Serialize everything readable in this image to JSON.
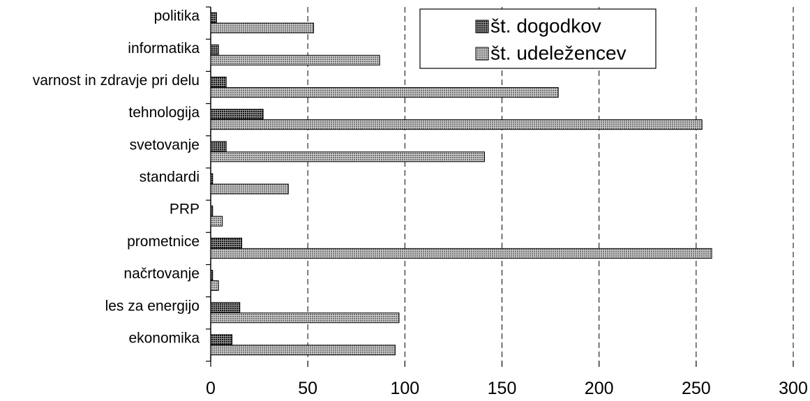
{
  "chart_data": {
    "type": "bar",
    "orientation": "horizontal",
    "categories": [
      "politika",
      "informatika",
      "varnost in zdravje pri delu",
      "tehnologija",
      "svetovanje",
      "standardi",
      "PRP",
      "prometnice",
      "načrtovanje",
      "les za energijo",
      "ekonomika"
    ],
    "series": [
      {
        "name": "št. dogodkov",
        "values": [
          3,
          4,
          8,
          27,
          8,
          1,
          1,
          16,
          1,
          15,
          11
        ],
        "pattern": "dark-dotted"
      },
      {
        "name": "št. udeležencev",
        "values": [
          53,
          87,
          179,
          253,
          141,
          40,
          6,
          258,
          4,
          97,
          95
        ],
        "pattern": "gray-dotted"
      }
    ],
    "x_ticks": [
      0,
      50,
      100,
      150,
      200,
      250,
      300
    ],
    "xlim": [
      0,
      300
    ],
    "grid": "vertical dashed",
    "legend_position": "top-right",
    "title": "",
    "xlabel": "",
    "ylabel": ""
  }
}
